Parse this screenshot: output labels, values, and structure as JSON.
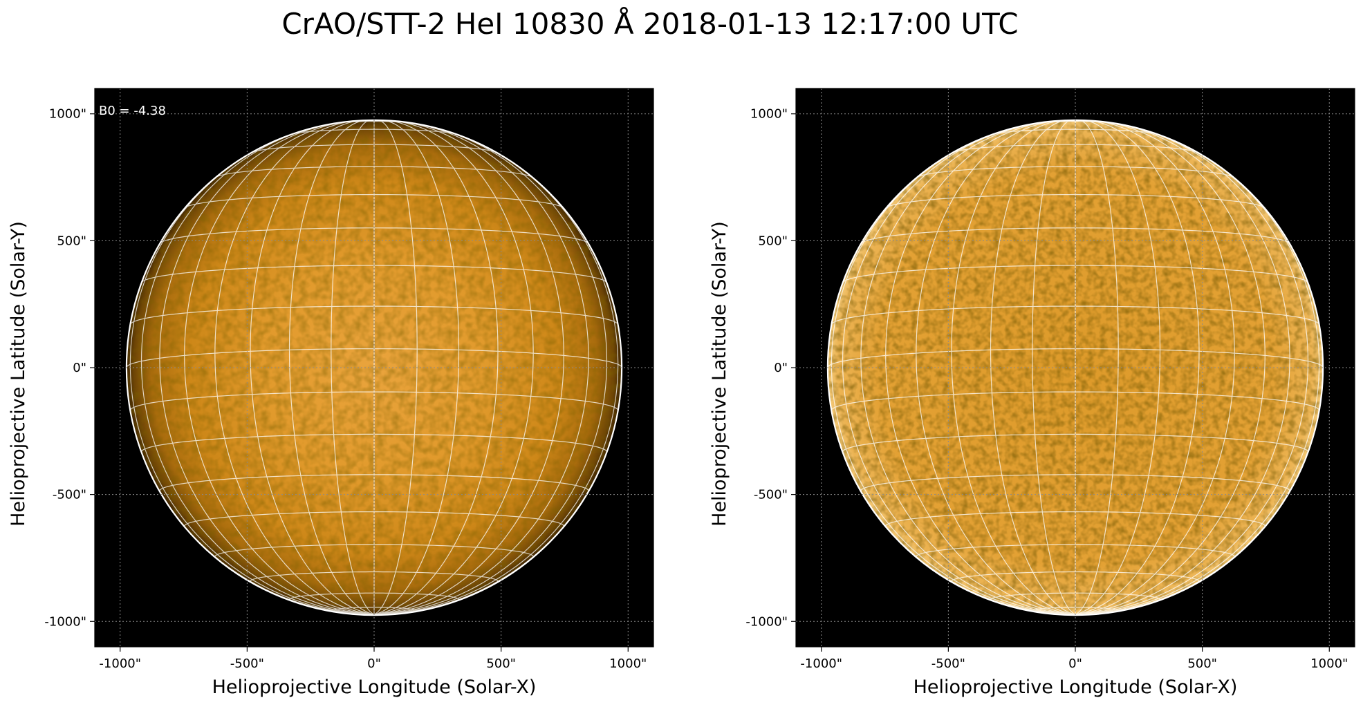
{
  "figure": {
    "title": "CrAO/STT-2 HeI 10830 Å 2018-01-13 12:17:00 UTC"
  },
  "panels": [
    {
      "id": "left",
      "annotation": "B0 = -4.38",
      "xlabel": "Helioprojective Longitude (Solar-X)",
      "ylabel": "Helioprojective Latitude (Solar-Y)",
      "xticks": [
        "-1000\"",
        "-500\"",
        "0\"",
        "500\"",
        "1000\""
      ],
      "yticks": [
        "1000\"",
        "500\"",
        "0\"",
        "-500\"",
        "-1000\""
      ],
      "range_arcsec": [
        -1100,
        1100
      ],
      "limb_radius_arcsec": 975,
      "grid_spacing_deg": 10,
      "disk_style": "limb-darkened"
    },
    {
      "id": "right",
      "annotation": "",
      "xlabel": "Helioprojective Longitude (Solar-X)",
      "ylabel": "Helioprojective Latitude (Solar-Y)",
      "xticks": [
        "-1000\"",
        "-500\"",
        "0\"",
        "500\"",
        "1000\""
      ],
      "yticks": [
        "1000\"",
        "500\"",
        "0\"",
        "-500\"",
        "-1000\""
      ],
      "range_arcsec": [
        -1100,
        1100
      ],
      "limb_radius_arcsec": 975,
      "grid_spacing_deg": 10,
      "disk_style": "flattened"
    }
  ],
  "colors": {
    "background": "#000000",
    "disk_center": "#e9a33a",
    "disk_mid": "#d38c1a",
    "disk_limb": "#4a2c02",
    "grid": "#ffffff",
    "axis_grid": "#8a8a8a"
  }
}
